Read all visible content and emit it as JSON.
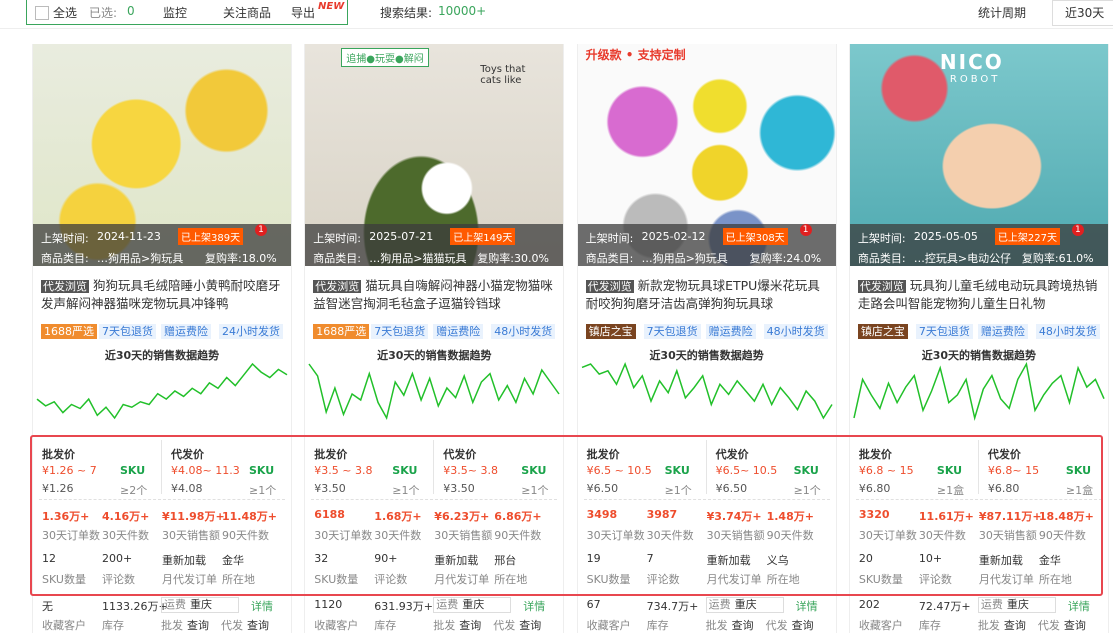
{
  "toolbar": {
    "select_all": "全选",
    "selected_label": "已选:",
    "selected_count": "0",
    "monitor": "监控",
    "follow": "关注商品",
    "export": "导出",
    "export_badge": "NEW",
    "results_label": "搜索结果:",
    "results_count": "10000+",
    "period_label": "统计周期",
    "period": "近30天"
  },
  "products": [
    {
      "image_text": [],
      "listed_label": "上架时间:",
      "listed_date": "2024-11-23",
      "listed_days": "已上架389天",
      "notice": "1",
      "category_label": "商品类目:",
      "category": "…狗用品>狗玩具",
      "repurchase": "复购率:18.0%",
      "title_tag": "代发浏览",
      "title": "狗狗玩具毛绒陪睡小黄鸭耐咬磨牙发声解闷神器猫咪宠物玩具冲锋鸭",
      "tags": [
        "1688严选",
        "7天包退货",
        "赠运费险",
        "24小时发货"
      ],
      "trend_title": "近30天的销售数据趋势",
      "trend": [
        40,
        35,
        38,
        30,
        36,
        33,
        40,
        28,
        34,
        26,
        36,
        34,
        38,
        36,
        44,
        40,
        46,
        42,
        48,
        44,
        52,
        48,
        56,
        50,
        58,
        66,
        60,
        56,
        62,
        58
      ],
      "wholesale": {
        "label": "批发价",
        "range": "¥1.26 ~ 7",
        "sku": "SKU",
        "price": "¥1.26",
        "moq": "≥2个"
      },
      "dropship": {
        "label": "代发价",
        "range": "¥4.08~ 11.3",
        "sku": "SKU",
        "price": "¥4.08",
        "moq": "≥1个"
      },
      "stats": [
        {
          "value": "1.36万+",
          "label": "30天订单数"
        },
        {
          "value": "4.16万+",
          "label": "30天件数"
        },
        {
          "value": "¥11.98万+",
          "label": "30天销售额"
        },
        {
          "value": "11.48万+",
          "label": "90天件数"
        },
        {
          "value": "12",
          "label": "SKU数量"
        },
        {
          "value": "200+",
          "label": "评论数"
        },
        {
          "value": "重新加载",
          "label": "月代发订单"
        },
        {
          "value": "金华",
          "label": "所在地"
        }
      ],
      "footer": {
        "fav": "无",
        "fav_label": "收藏客户",
        "stock": "1133.26万+",
        "stock_label": "库存",
        "freight_label": "运费",
        "city": "重庆",
        "detail": "详情",
        "wholesale": "批发",
        "wholesale_query": "查询",
        "dropship": "代发",
        "dropship_query": "查询"
      }
    },
    {
      "image_text": [
        "追捕●玩耍●解闷",
        "Toys that cats like"
      ],
      "listed_label": "上架时间:",
      "listed_date": "2025-07-21",
      "listed_days": "已上架149天",
      "notice": "",
      "category_label": "商品类目:",
      "category": "…狗用品>猫猫玩具",
      "repurchase": "复购率:30.0%",
      "title_tag": "代发浏览",
      "title": "猫玩具自嗨解闷神器小猫宠物猫咪益智迷宫掏洞毛毡盒子逗猫铃铛球",
      "tags": [
        "1688严选",
        "7天包退货",
        "赠运费险",
        "48小时发货"
      ],
      "trend_title": "近30天的销售数据趋势",
      "trend": [
        70,
        60,
        30,
        50,
        28,
        45,
        40,
        62,
        38,
        25,
        55,
        44,
        62,
        40,
        58,
        35,
        50,
        42,
        60,
        38,
        55,
        62,
        40,
        52,
        38,
        58,
        45,
        65,
        55,
        45
      ],
      "wholesale": {
        "label": "批发价",
        "range": "¥3.5 ~ 3.8",
        "sku": "SKU",
        "price": "¥3.50",
        "moq": "≥1个"
      },
      "dropship": {
        "label": "代发价",
        "range": "¥3.5~ 3.8",
        "sku": "SKU",
        "price": "¥3.50",
        "moq": "≥1个"
      },
      "stats": [
        {
          "value": "6188",
          "label": "30天订单数"
        },
        {
          "value": "1.68万+",
          "label": "30天件数"
        },
        {
          "value": "¥6.23万+",
          "label": "30天销售额"
        },
        {
          "value": "6.86万+",
          "label": "90天件数"
        },
        {
          "value": "32",
          "label": "SKU数量"
        },
        {
          "value": "90+",
          "label": "评论数"
        },
        {
          "value": "重新加载",
          "label": "月代发订单"
        },
        {
          "value": "邢台",
          "label": "所在地"
        }
      ],
      "footer": {
        "fav": "1120",
        "fav_label": "收藏客户",
        "stock": "631.93万+",
        "stock_label": "库存",
        "freight_label": "运费",
        "city": "重庆",
        "detail": "详情",
        "wholesale": "批发",
        "wholesale_query": "查询",
        "dropship": "代发",
        "dropship_query": "查询"
      }
    },
    {
      "image_text": [
        "升级款 • 支持定制"
      ],
      "listed_label": "上架时间:",
      "listed_date": "2025-02-12",
      "listed_days": "已上架308天",
      "notice": "1",
      "category_label": "商品类目:",
      "category": "…狗用品>狗玩具",
      "repurchase": "复购率:24.0%",
      "title_tag": "代发浏览",
      "title": "新款宠物玩具球ETPU爆米花玩具耐咬狗狗磨牙洁齿高弹狗狗玩具球",
      "tags": [
        "镇店之宝",
        "7天包退货",
        "赠运费险",
        "48小时发货"
      ],
      "trend_title": "近30天的销售数据趋势",
      "trend": [
        60,
        62,
        56,
        58,
        50,
        62,
        48,
        55,
        40,
        52,
        45,
        58,
        42,
        48,
        55,
        38,
        50,
        44,
        52,
        46,
        40,
        50,
        38,
        48,
        42,
        35,
        46,
        40,
        30,
        38
      ],
      "wholesale": {
        "label": "批发价",
        "range": "¥6.5 ~ 10.5",
        "sku": "SKU",
        "price": "¥6.50",
        "moq": "≥1个"
      },
      "dropship": {
        "label": "代发价",
        "range": "¥6.5~ 10.5",
        "sku": "SKU",
        "price": "¥6.50",
        "moq": "≥1个"
      },
      "stats": [
        {
          "value": "3498",
          "label": "30天订单数"
        },
        {
          "value": "3987",
          "label": "30天件数"
        },
        {
          "value": "¥3.74万+",
          "label": "30天销售额"
        },
        {
          "value": "1.48万+",
          "label": "90天件数"
        },
        {
          "value": "19",
          "label": "SKU数量"
        },
        {
          "value": "7",
          "label": "评论数"
        },
        {
          "value": "重新加载",
          "label": "月代发订单"
        },
        {
          "value": "义乌",
          "label": "所在地"
        }
      ],
      "footer": {
        "fav": "67",
        "fav_label": "收藏客户",
        "stock": "734.7万+",
        "stock_label": "库存",
        "freight_label": "运费",
        "city": "重庆",
        "detail": "详情",
        "wholesale": "批发",
        "wholesale_query": "查询",
        "dropship": "代发",
        "dropship_query": "查询"
      }
    },
    {
      "image_text": [
        "NICO",
        "ROBOT"
      ],
      "listed_label": "上架时间:",
      "listed_date": "2025-05-05",
      "listed_days": "已上架227天",
      "notice": "1",
      "category_label": "商品类目:",
      "category": "…控玩具>电动公仔",
      "repurchase": "复购率:61.0%",
      "title_tag": "代发浏览",
      "title": "玩具狗儿童毛绒电动玩具跨境热销走路会叫智能宠物狗儿童生日礼物",
      "tags": [
        "镇店之宝",
        "7天包退货",
        "赠运费险",
        "48小时发货"
      ],
      "trend_title": "近30天的销售数据趋势",
      "trend": [
        40,
        60,
        52,
        45,
        58,
        48,
        56,
        62,
        44,
        54,
        66,
        48,
        52,
        60,
        40,
        55,
        62,
        50,
        45,
        60,
        68,
        44,
        52,
        58,
        62,
        48,
        66,
        56,
        60,
        50
      ],
      "wholesale": {
        "label": "批发价",
        "range": "¥6.8 ~ 15",
        "sku": "SKU",
        "price": "¥6.80",
        "moq": "≥1盒"
      },
      "dropship": {
        "label": "代发价",
        "range": "¥6.8~ 15",
        "sku": "SKU",
        "price": "¥6.80",
        "moq": "≥1盒"
      },
      "stats": [
        {
          "value": "3320",
          "label": "30天订单数"
        },
        {
          "value": "11.61万+",
          "label": "30天件数"
        },
        {
          "value": "¥87.11万+",
          "label": "30天销售额"
        },
        {
          "value": "18.48万+",
          "label": "90天件数"
        },
        {
          "value": "20",
          "label": "SKU数量"
        },
        {
          "value": "10+",
          "label": "评论数"
        },
        {
          "value": "重新加载",
          "label": "月代发订单"
        },
        {
          "value": "金华",
          "label": "所在地"
        }
      ],
      "footer": {
        "fav": "202",
        "fav_label": "收藏客户",
        "stock": "72.47万+",
        "stock_label": "库存",
        "freight_label": "运费",
        "city": "重庆",
        "detail": "详情",
        "wholesale": "批发",
        "wholesale_query": "查询",
        "dropship": "代发",
        "dropship_query": "查询"
      }
    }
  ]
}
